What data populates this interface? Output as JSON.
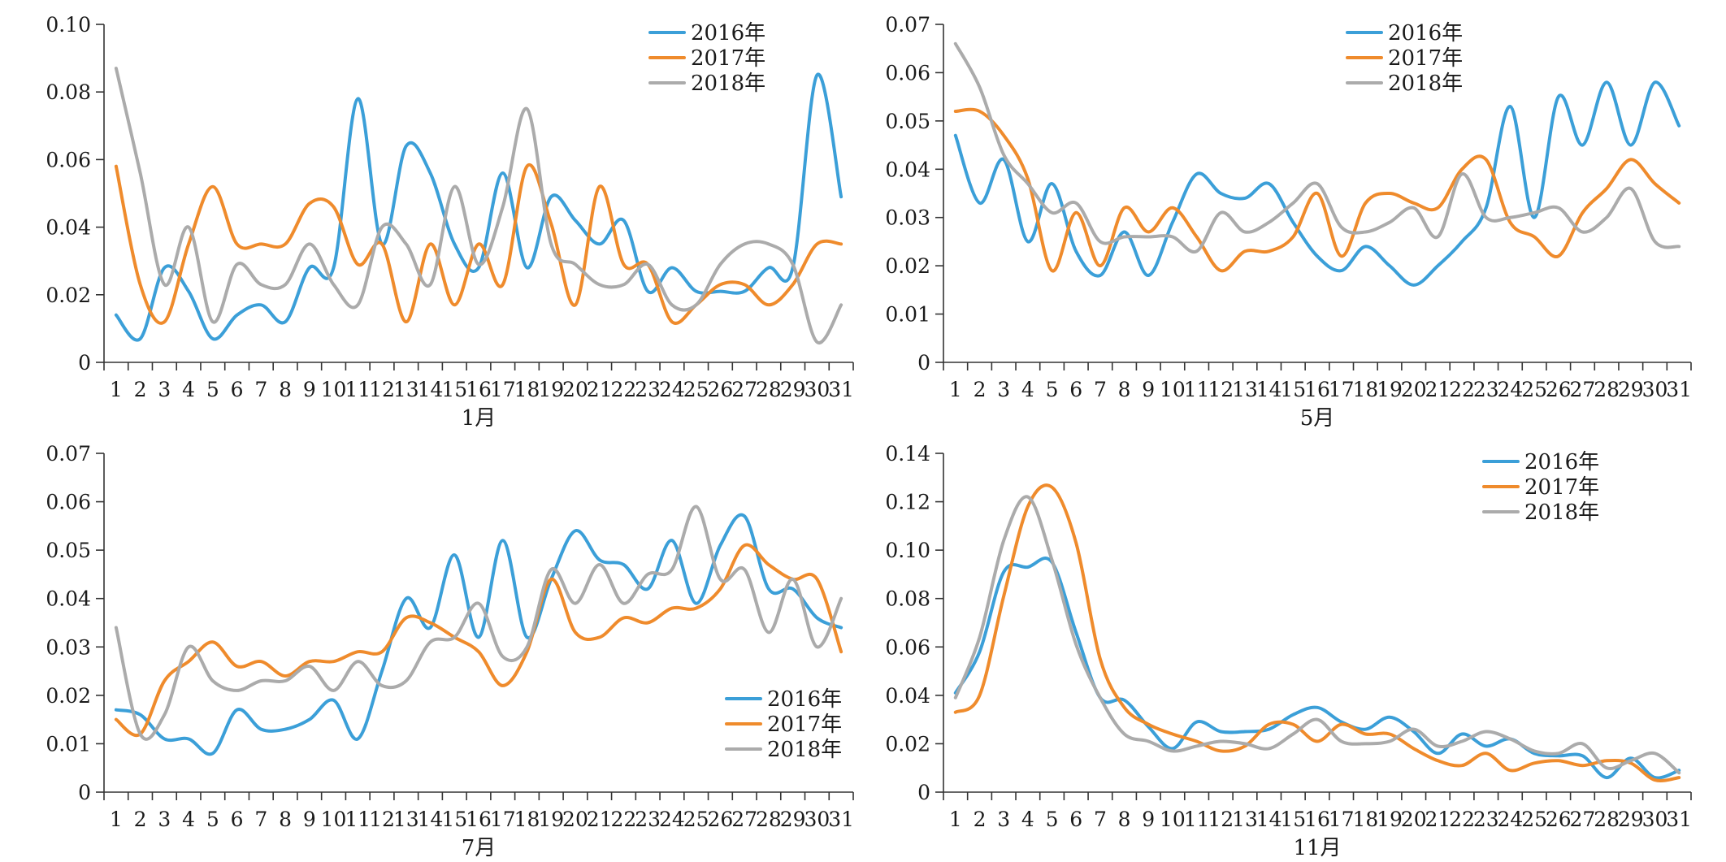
{
  "chart_data": [
    {
      "type": "line",
      "xlabel": "1月",
      "ylim": [
        0,
        0.1
      ],
      "yticks": [
        "0",
        "0.02",
        "0.04",
        "0.06",
        "0.08",
        "0.10"
      ],
      "categories": [
        "1",
        "2",
        "3",
        "4",
        "5",
        "6",
        "7",
        "8",
        "9",
        "10",
        "11",
        "12",
        "13",
        "14",
        "15",
        "16",
        "17",
        "18",
        "19",
        "20",
        "21",
        "22",
        "23",
        "24",
        "25",
        "26",
        "27",
        "28",
        "29",
        "30",
        "31"
      ],
      "legend_position": "top-right",
      "series": [
        {
          "name": "2016年",
          "color": "#3b9fd8",
          "values": [
            0.014,
            0.007,
            0.028,
            0.021,
            0.007,
            0.014,
            0.017,
            0.012,
            0.028,
            0.028,
            0.078,
            0.035,
            0.064,
            0.056,
            0.035,
            0.028,
            0.056,
            0.028,
            0.049,
            0.042,
            0.035,
            0.042,
            0.021,
            0.028,
            0.021,
            0.021,
            0.021,
            0.028,
            0.028,
            0.085,
            0.049
          ]
        },
        {
          "name": "2017年",
          "color": "#ef8b2c",
          "values": [
            0.058,
            0.023,
            0.012,
            0.035,
            0.052,
            0.035,
            0.035,
            0.035,
            0.047,
            0.046,
            0.029,
            0.035,
            0.012,
            0.035,
            0.017,
            0.035,
            0.023,
            0.058,
            0.041,
            0.017,
            0.052,
            0.029,
            0.029,
            0.012,
            0.017,
            0.023,
            0.023,
            0.017,
            0.023,
            0.035,
            0.035
          ]
        },
        {
          "name": "2018年",
          "color": "#ababab",
          "values": [
            0.087,
            0.056,
            0.023,
            0.04,
            0.012,
            0.029,
            0.023,
            0.023,
            0.035,
            0.023,
            0.017,
            0.04,
            0.035,
            0.023,
            0.052,
            0.029,
            0.046,
            0.075,
            0.035,
            0.029,
            0.023,
            0.023,
            0.029,
            0.017,
            0.017,
            0.029,
            0.035,
            0.035,
            0.029,
            0.006,
            0.017
          ]
        }
      ]
    },
    {
      "type": "line",
      "xlabel": "5月",
      "ylim": [
        0,
        0.07
      ],
      "yticks": [
        "0",
        "0.01",
        "0.02",
        "0.03",
        "0.04",
        "0.05",
        "0.06",
        "0.07"
      ],
      "categories": [
        "1",
        "2",
        "3",
        "4",
        "5",
        "6",
        "7",
        "8",
        "9",
        "10",
        "11",
        "12",
        "13",
        "14",
        "15",
        "16",
        "17",
        "18",
        "19",
        "20",
        "21",
        "22",
        "23",
        "24",
        "25",
        "26",
        "27",
        "28",
        "29",
        "30",
        "31"
      ],
      "legend_position": "top-right",
      "series": [
        {
          "name": "2016年",
          "color": "#3b9fd8",
          "values": [
            0.047,
            0.033,
            0.042,
            0.025,
            0.037,
            0.023,
            0.018,
            0.027,
            0.018,
            0.029,
            0.039,
            0.035,
            0.034,
            0.037,
            0.029,
            0.022,
            0.019,
            0.024,
            0.02,
            0.016,
            0.02,
            0.025,
            0.032,
            0.053,
            0.03,
            0.055,
            0.045,
            0.058,
            0.045,
            0.058,
            0.049
          ]
        },
        {
          "name": "2017年",
          "color": "#ef8b2c",
          "values": [
            0.052,
            0.052,
            0.047,
            0.038,
            0.019,
            0.031,
            0.02,
            0.032,
            0.027,
            0.032,
            0.026,
            0.019,
            0.023,
            0.023,
            0.026,
            0.035,
            0.022,
            0.033,
            0.035,
            0.033,
            0.032,
            0.04,
            0.042,
            0.029,
            0.026,
            0.022,
            0.031,
            0.036,
            0.042,
            0.037,
            0.033
          ]
        },
        {
          "name": "2018年",
          "color": "#ababab",
          "values": [
            0.066,
            0.057,
            0.043,
            0.037,
            0.031,
            0.033,
            0.025,
            0.026,
            0.026,
            0.026,
            0.023,
            0.031,
            0.027,
            0.029,
            0.033,
            0.037,
            0.028,
            0.027,
            0.029,
            0.032,
            0.026,
            0.039,
            0.03,
            0.03,
            0.031,
            0.032,
            0.027,
            0.03,
            0.036,
            0.025,
            0.024
          ]
        }
      ]
    },
    {
      "type": "line",
      "xlabel": "7月",
      "ylim": [
        0,
        0.07
      ],
      "yticks": [
        "0",
        "0.01",
        "0.02",
        "0.03",
        "0.04",
        "0.05",
        "0.06",
        "0.07"
      ],
      "categories": [
        "1",
        "2",
        "3",
        "4",
        "5",
        "6",
        "7",
        "8",
        "9",
        "10",
        "11",
        "12",
        "13",
        "14",
        "15",
        "16",
        "17",
        "18",
        "19",
        "20",
        "21",
        "22",
        "23",
        "24",
        "25",
        "26",
        "27",
        "28",
        "29",
        "30",
        "31"
      ],
      "legend_position": "bottom-right",
      "series": [
        {
          "name": "2016年",
          "color": "#3b9fd8",
          "values": [
            0.017,
            0.016,
            0.011,
            0.011,
            0.008,
            0.017,
            0.013,
            0.013,
            0.015,
            0.019,
            0.011,
            0.025,
            0.04,
            0.034,
            0.049,
            0.032,
            0.052,
            0.032,
            0.044,
            0.054,
            0.048,
            0.047,
            0.042,
            0.052,
            0.039,
            0.051,
            0.057,
            0.042,
            0.042,
            0.036,
            0.034
          ]
        },
        {
          "name": "2017年",
          "color": "#ef8b2c",
          "values": [
            0.015,
            0.012,
            0.023,
            0.027,
            0.031,
            0.026,
            0.027,
            0.024,
            0.027,
            0.027,
            0.029,
            0.029,
            0.036,
            0.035,
            0.032,
            0.029,
            0.022,
            0.029,
            0.044,
            0.033,
            0.032,
            0.036,
            0.035,
            0.038,
            0.038,
            0.042,
            0.051,
            0.047,
            0.044,
            0.044,
            0.029
          ]
        },
        {
          "name": "2018年",
          "color": "#ababab",
          "values": [
            0.034,
            0.012,
            0.016,
            0.03,
            0.023,
            0.021,
            0.023,
            0.023,
            0.026,
            0.021,
            0.027,
            0.022,
            0.023,
            0.031,
            0.032,
            0.039,
            0.028,
            0.03,
            0.046,
            0.039,
            0.047,
            0.039,
            0.045,
            0.046,
            0.059,
            0.044,
            0.046,
            0.033,
            0.044,
            0.03,
            0.04
          ]
        }
      ]
    },
    {
      "type": "line",
      "xlabel": "11月",
      "ylim": [
        0,
        0.14
      ],
      "yticks": [
        "0",
        "0.02",
        "0.04",
        "0.06",
        "0.08",
        "0.10",
        "0.12",
        "0.14"
      ],
      "categories": [
        "1",
        "2",
        "3",
        "4",
        "5",
        "6",
        "7",
        "8",
        "9",
        "10",
        "11",
        "12",
        "13",
        "14",
        "15",
        "16",
        "17",
        "18",
        "19",
        "20",
        "21",
        "22",
        "23",
        "24",
        "25",
        "26",
        "27",
        "28",
        "29",
        "30",
        "31"
      ],
      "legend_position": "top-right",
      "series": [
        {
          "name": "2016年",
          "color": "#3b9fd8",
          "values": [
            0.041,
            0.058,
            0.091,
            0.093,
            0.095,
            0.066,
            0.039,
            0.038,
            0.027,
            0.018,
            0.029,
            0.025,
            0.025,
            0.026,
            0.032,
            0.035,
            0.029,
            0.026,
            0.031,
            0.025,
            0.016,
            0.024,
            0.019,
            0.022,
            0.016,
            0.015,
            0.015,
            0.006,
            0.014,
            0.006,
            0.009
          ]
        },
        {
          "name": "2017年",
          "color": "#ef8b2c",
          "values": [
            0.033,
            0.04,
            0.081,
            0.118,
            0.126,
            0.103,
            0.055,
            0.035,
            0.028,
            0.024,
            0.021,
            0.017,
            0.019,
            0.028,
            0.028,
            0.021,
            0.028,
            0.024,
            0.024,
            0.018,
            0.013,
            0.011,
            0.016,
            0.009,
            0.012,
            0.013,
            0.011,
            0.013,
            0.012,
            0.005,
            0.006
          ]
        },
        {
          "name": "2018年",
          "color": "#ababab",
          "values": [
            0.039,
            0.064,
            0.104,
            0.122,
            0.096,
            0.061,
            0.039,
            0.024,
            0.021,
            0.017,
            0.019,
            0.021,
            0.02,
            0.018,
            0.024,
            0.03,
            0.021,
            0.02,
            0.021,
            0.026,
            0.019,
            0.021,
            0.025,
            0.022,
            0.017,
            0.016,
            0.02,
            0.01,
            0.013,
            0.016,
            0.008
          ]
        }
      ]
    }
  ]
}
